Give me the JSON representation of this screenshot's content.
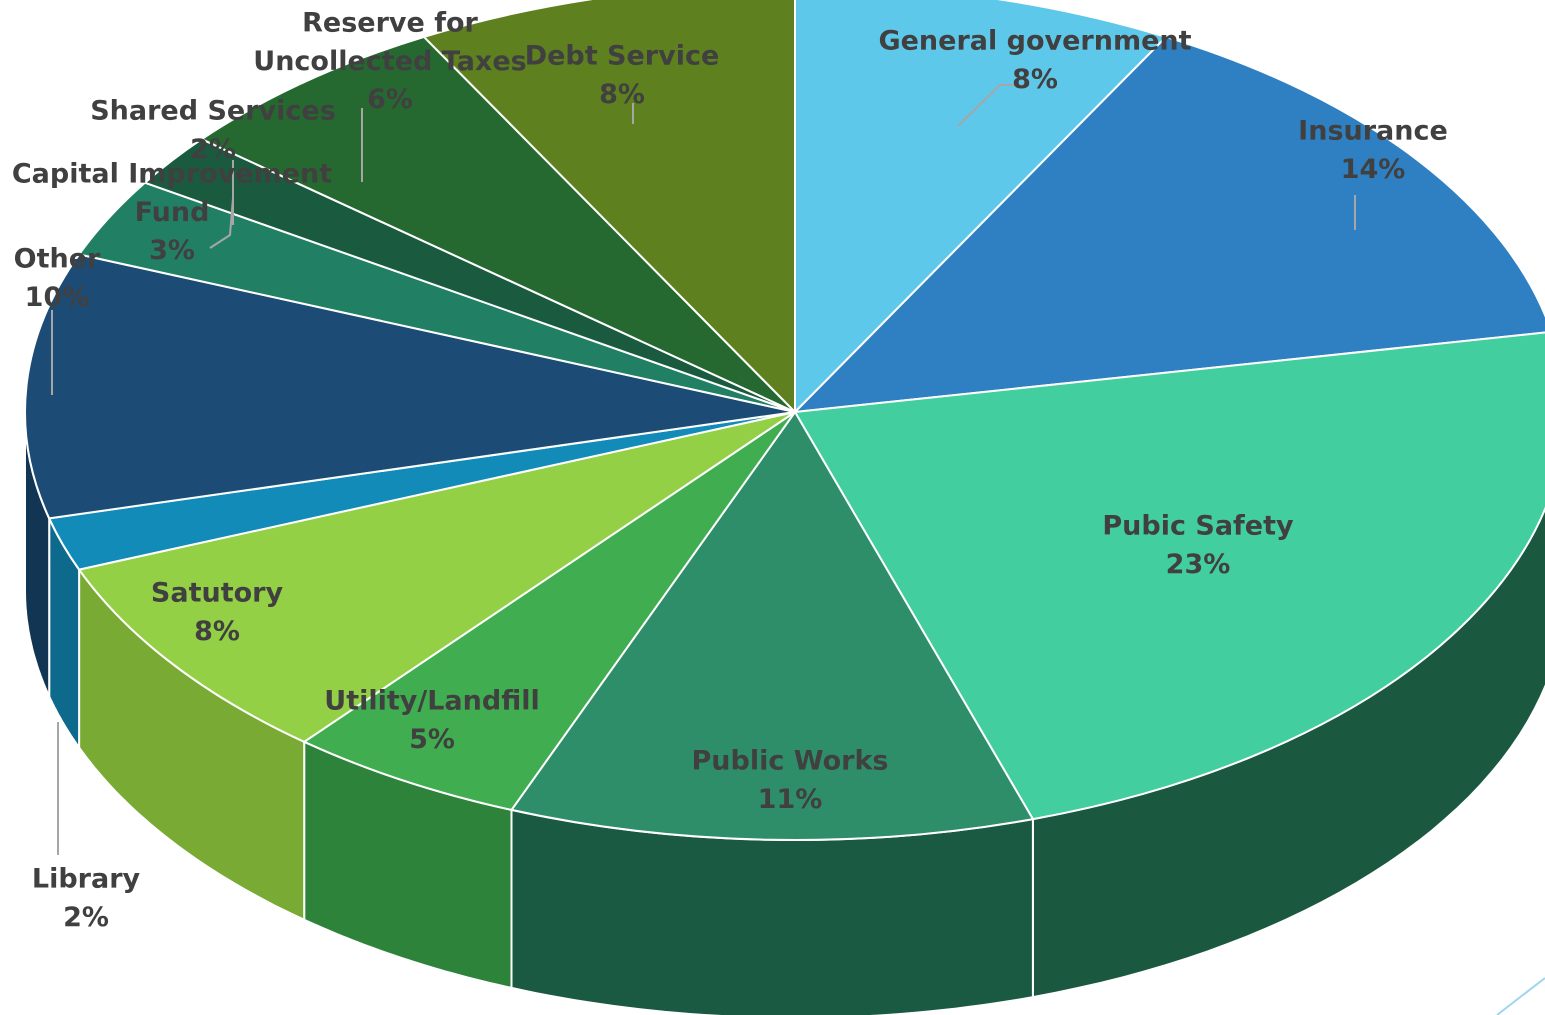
{
  "chart_data": {
    "type": "pie",
    "title": "",
    "slices": [
      {
        "label": "General government",
        "value": 8,
        "value_label": "8%",
        "color": "#5EC8EB",
        "side_color": "#3C9CC0"
      },
      {
        "label": "Insurance",
        "value": 14,
        "value_label": "14%",
        "color": "#2E80C2",
        "side_color": "#1E5C90"
      },
      {
        "label": "Pubic Safety",
        "value": 23,
        "value_label": "23%",
        "color": "#42CE9E",
        "side_color": "#1B5840"
      },
      {
        "label": "Public Works",
        "value": 11,
        "value_label": "11%",
        "color": "#2E8E6A",
        "side_color": "#1A5A42"
      },
      {
        "label": "Utility/Landfill",
        "value": 5,
        "value_label": "5%",
        "color": "#40AD50",
        "side_color": "#2E833A"
      },
      {
        "label": "Satutory",
        "value": 8,
        "value_label": "8%",
        "color": "#94D045",
        "side_color": "#79AA34"
      },
      {
        "label": "Library",
        "value": 2,
        "value_label": "2%",
        "color": "#138BB8",
        "side_color": "#0E6A8C"
      },
      {
        "label": "Other",
        "value": 10,
        "value_label": "10%",
        "color": "#1C4C75",
        "side_color": "#133554"
      },
      {
        "label": "Capital Improvement Fund",
        "value": 3,
        "value_label": "3%",
        "color": "#218064",
        "side_color": "#165845"
      },
      {
        "label": "Shared Services",
        "value": 2,
        "value_label": "2%",
        "color": "#1A5A3E",
        "side_color": "#123E2B"
      },
      {
        "label": "Reserve for Uncollected Taxes",
        "value": 6,
        "value_label": "6%",
        "color": "#266930",
        "side_color": "#1A4A22"
      },
      {
        "label": "Debt Service",
        "value": 8,
        "value_label": "8%",
        "color": "#5E801F",
        "side_color": "#455D16"
      }
    ],
    "legend": "none",
    "labels": "data labels with category name and percentage"
  }
}
